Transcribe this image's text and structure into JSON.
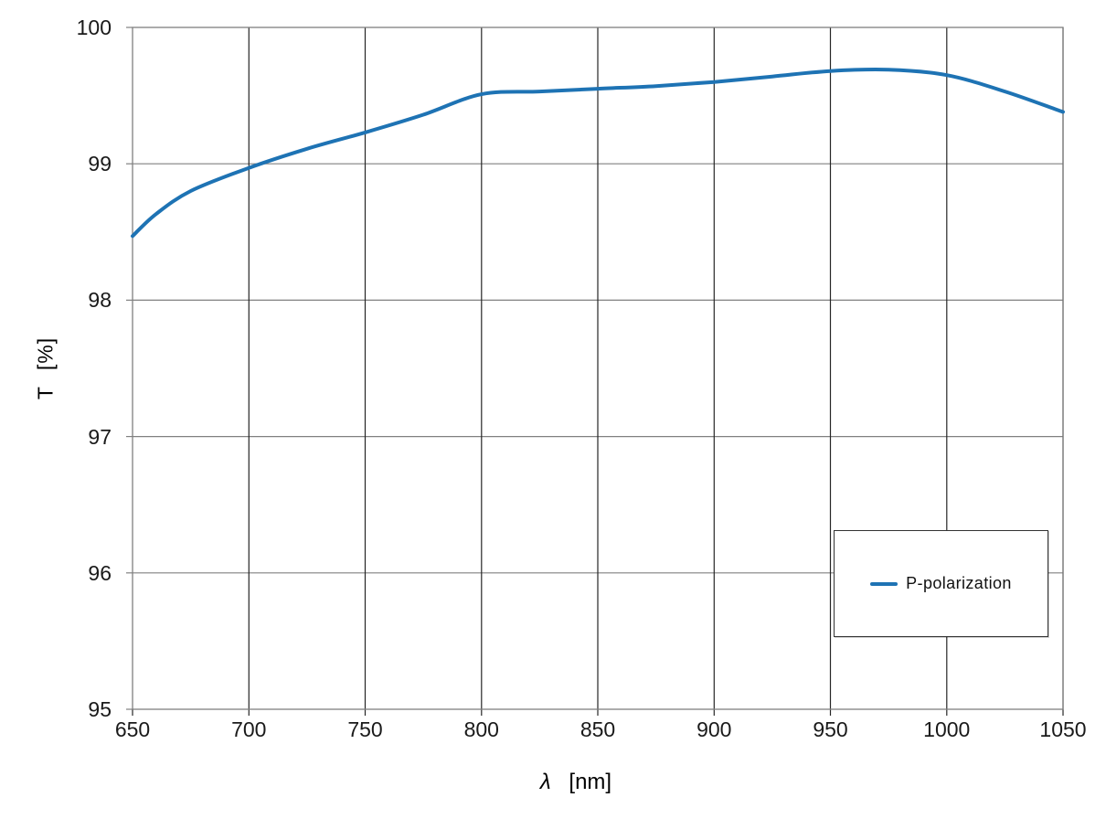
{
  "chart_data": {
    "type": "line",
    "title": "",
    "xlabel": "λ [nm]",
    "ylabel": "T [%]",
    "xlabel_symbol": "λ",
    "xlabel_unit": "[nm]",
    "ylabel_symbol": "T",
    "ylabel_unit": "[%]",
    "xlim": [
      650,
      1050
    ],
    "ylim": [
      95,
      100
    ],
    "xticks": [
      650,
      700,
      750,
      800,
      850,
      900,
      950,
      1000,
      1050
    ],
    "yticks": [
      100,
      99,
      98,
      97,
      96,
      95
    ],
    "grid": true,
    "legend_position": "inside lower right",
    "series": [
      {
        "name": "P-polarization",
        "color": "#1e73b4",
        "x": [
          650,
          660,
          675,
          700,
          725,
          750,
          775,
          800,
          825,
          850,
          875,
          900,
          925,
          950,
          975,
          1000,
          1025,
          1050
        ],
        "y": [
          98.47,
          98.63,
          98.8,
          98.97,
          99.11,
          99.23,
          99.36,
          99.51,
          99.53,
          99.55,
          99.57,
          99.6,
          99.64,
          99.68,
          99.69,
          99.65,
          99.53,
          99.38
        ]
      }
    ]
  },
  "legend": {
    "label": "P-polarization"
  },
  "colors": {
    "line": "#1e73b4",
    "h_grid": "#808080",
    "v_grid": "#262626",
    "plot_border": "#808080",
    "text": "#000000",
    "legend_border": "#333333",
    "background": "#ffffff"
  }
}
